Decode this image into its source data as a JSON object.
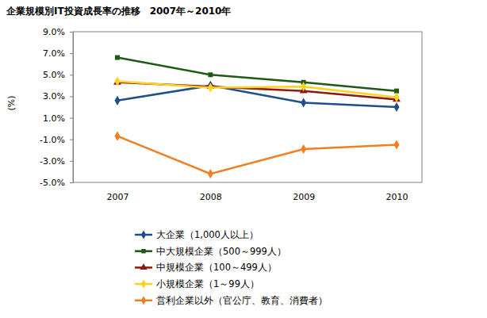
{
  "chart_data": {
    "type": "line",
    "title": "企業規模別IT投資成長率の推移　2007年～2010年",
    "y_label": "(%)",
    "categories": [
      "2007",
      "2008",
      "2009",
      "2010"
    ],
    "ylim": [
      -5,
      9
    ],
    "yticks": [
      {
        "value": -5,
        "label": "-5.0%"
      },
      {
        "value": -3,
        "label": "-3.0%"
      },
      {
        "value": -1,
        "label": "-1.0%"
      },
      {
        "value": 1,
        "label": "1.0%"
      },
      {
        "value": 3,
        "label": "3.0%"
      },
      {
        "value": 5,
        "label": "5.0%"
      },
      {
        "value": 7,
        "label": "7.0%"
      },
      {
        "value": 9,
        "label": "9.0%"
      }
    ],
    "grid": false,
    "legend": "bottom",
    "series": [
      {
        "name": "大企業（1,000人以上）",
        "color": "#1f4e8c",
        "marker": "diamond",
        "values": [
          2.6,
          4.0,
          2.4,
          2.0
        ]
      },
      {
        "name": "中大規模企業（500～999人）",
        "color": "#1e5a14",
        "marker": "square",
        "values": [
          6.6,
          5.0,
          4.3,
          3.5
        ]
      },
      {
        "name": "中規模企業（100～499人）",
        "color": "#8b1a10",
        "marker": "triangle",
        "values": [
          4.3,
          3.9,
          3.5,
          2.7
        ]
      },
      {
        "name": "小規模企業（1～99人）",
        "color": "#ffd21f",
        "marker": "diamond",
        "values": [
          4.4,
          3.8,
          3.9,
          2.9
        ]
      },
      {
        "name": "営利企業以外（官公庁、教育、消費者）",
        "color": "#f07f22",
        "marker": "diamond",
        "values": [
          -0.7,
          -4.2,
          -1.9,
          -1.5
        ]
      }
    ]
  }
}
